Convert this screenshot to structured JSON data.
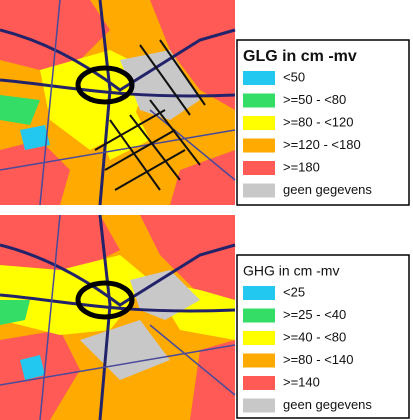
{
  "maps": [
    {
      "legend": {
        "title": "GLG in cm -mv",
        "title_bold": true,
        "items": [
          {
            "label": "<50",
            "color": "#22c8f0"
          },
          {
            "label": ">=50 - <80",
            "color": "#33dd66"
          },
          {
            "label": ">=80 - <120",
            "color": "#ffff00"
          },
          {
            "label": ">=120 - <180",
            "color": "#ffaa00"
          },
          {
            "label": ">=180",
            "color": "#ff5a55"
          },
          {
            "label": "geen gegevens",
            "color": "#c8c8c8"
          }
        ]
      }
    },
    {
      "legend": {
        "title": "GHG in cm -mv",
        "title_bold": false,
        "items": [
          {
            "label": "<25",
            "color": "#22c8f0"
          },
          {
            "label": ">=25 - <40",
            "color": "#33dd66"
          },
          {
            "label": ">=40 - <80",
            "color": "#ffff00"
          },
          {
            "label": ">=80 - <140",
            "color": "#ffaa00"
          },
          {
            "label": ">=140",
            "color": "#ff5a55"
          },
          {
            "label": "geen gegevens",
            "color": "#c8c8c8"
          }
        ]
      }
    }
  ]
}
